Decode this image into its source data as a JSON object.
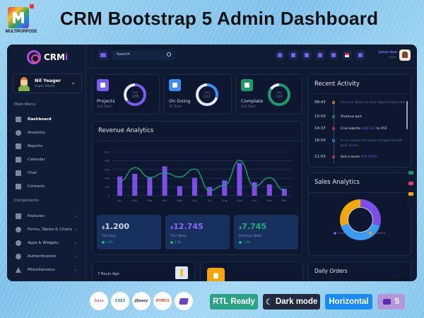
{
  "header": {
    "brand_text": "MULTIPURPOSE",
    "title": "CRM Bootstrap 5 Admin Dashboard"
  },
  "sidebar": {
    "logo_text": "CRM",
    "logo_accent": "i",
    "profile": {
      "name": "Nil Yeager",
      "role": "Super Admin"
    },
    "main_menu_label": "Main Menu",
    "main_items": [
      {
        "label": "Dashboard",
        "icon": "dashboard-icon",
        "active": true
      },
      {
        "label": "Analytics",
        "icon": "analytics-icon"
      },
      {
        "label": "Reports",
        "icon": "reports-icon"
      },
      {
        "label": "Calendar",
        "icon": "calendar-icon"
      },
      {
        "label": "Chat",
        "icon": "chat-icon"
      },
      {
        "label": "Contacts",
        "icon": "contacts-icon"
      }
    ],
    "components_label": "Components",
    "component_items": [
      {
        "label": "Features",
        "icon": "features-icon"
      },
      {
        "label": "Forms, Tables & Charts",
        "icon": "forms-icon"
      },
      {
        "label": "Apps & Widgets",
        "icon": "apps-icon"
      },
      {
        "label": "Authentication",
        "icon": "authentication-icon"
      },
      {
        "label": "Miscellaneous",
        "icon": "warning-icon"
      }
    ],
    "chevron": "›"
  },
  "topbar": {
    "search_placeholder": "Search",
    "user": {
      "name": "Johan Doe",
      "role": "Admin"
    }
  },
  "stats": [
    {
      "label": "Projects",
      "sub": "124 Total",
      "ring_label": "Total",
      "ring_value": "108",
      "color": "#7b5cf0"
    },
    {
      "label": "On Going",
      "sub": "32 Total",
      "ring_label": "Total",
      "ring_value": "112",
      "color": "#3b8ef5"
    },
    {
      "label": "Complate",
      "sub": "102 Total",
      "ring_label": "Total",
      "ring_value": "114",
      "color": "#1e9a6a"
    }
  ],
  "revenue": {
    "title": "Revenue Analytics",
    "boxes": [
      {
        "currency": "$",
        "value": "1.200",
        "label": "This Day",
        "pct": "1.8%",
        "color": "#ffffff"
      },
      {
        "currency": "$",
        "value": "12.745",
        "label": "This Week",
        "pct": "1.8%",
        "color": "#8b6cf7"
      },
      {
        "currency": "$",
        "value": "7.745",
        "label": "Previous Week",
        "pct": "1.8%",
        "color": "#22b07d"
      }
    ]
  },
  "chart_data": [
    {
      "type": "bar",
      "title": "Revenue Analytics",
      "categories": [
        "Jan",
        "Feb",
        "Mar",
        "Apr",
        "May",
        "Jun",
        "Jul",
        "Aug",
        "Sep",
        "Oct",
        "Nov",
        "Dec"
      ],
      "series": [
        {
          "name": "Bars",
          "type": "bar",
          "color": "#7b4fe6",
          "values": [
            440,
            500,
            410,
            670,
            220,
            410,
            200,
            350,
            750,
            310,
            260,
            160
          ]
        },
        {
          "name": "Line",
          "type": "line",
          "color": "#16a07a",
          "values": [
            330,
            640,
            420,
            520,
            430,
            610,
            120,
            240,
            810,
            220,
            410,
            120
          ]
        }
      ],
      "yticks": [
        0,
        200,
        400,
        600,
        800,
        1000
      ],
      "ylim": [
        0,
        1000
      ],
      "grid": true
    },
    {
      "type": "pie",
      "title": "Sales Analytics",
      "categories": [
        "On line",
        "In Store",
        "Marketing"
      ],
      "values": [
        30,
        40,
        30
      ],
      "colors": [
        "#7b4fe6",
        "#3b9cf5",
        "#f5a70a"
      ],
      "legend_position": "bottom"
    }
  ],
  "activity": {
    "title": "Recent Activity",
    "items": [
      {
        "time": "08:42",
        "text": "Sed non libero at risus aliquet imperdiet.",
        "link": "",
        "suffix": "",
        "dot": "#f5a70a",
        "muted": true
      },
      {
        "time": "10:00",
        "text": "Vivamus quis",
        "link": "",
        "suffix": "",
        "dot": "#1ea67d",
        "muted": false
      },
      {
        "time": "14:37",
        "text": "Cras lobortis ",
        "link": "USD 412",
        "suffix": " to XYZ",
        "dot": "#e53970",
        "muted": false
      },
      {
        "time": "16:50",
        "text": "In eu massa sed lectus tempus blandit quis id orci.",
        "link": "",
        "suffix": "",
        "dot": "#3b8ef5",
        "muted": true
      },
      {
        "time": "21:03",
        "text": "Sed a lorem ",
        "link": "#41-4155",
        "suffix": ".",
        "dot": "#e53970",
        "muted": false
      }
    ]
  },
  "sales": {
    "title": "Sales Analytics",
    "legend": [
      "On line",
      "In Store",
      "Marketing"
    ]
  },
  "bottom": {
    "time_ago": "7 Hours Ago",
    "daily_orders_title": "Daily Orders"
  },
  "footer": {
    "tech": [
      "Sass",
      "CSS3",
      "jQuery",
      "HTML5",
      "Bootstrap"
    ],
    "badges": [
      {
        "label": "RTL Ready",
        "bg": "#2aa384"
      },
      {
        "label": "Dark mode",
        "bg": "#222a3f"
      },
      {
        "label": "Horizontal",
        "bg": "#1b8bf2"
      },
      {
        "label": "5",
        "bg": "#b497d8"
      }
    ]
  }
}
